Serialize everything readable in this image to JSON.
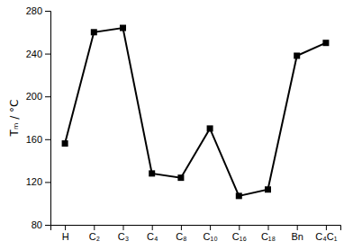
{
  "chart_data": {
    "type": "line",
    "categories": [
      "H",
      "C₂",
      "C₃",
      "C₄",
      "C₈",
      "C₁₀",
      "C₁₆",
      "C₁₈",
      "Bn",
      "C₄C₁"
    ],
    "values": [
      156,
      260,
      264,
      128,
      124,
      170,
      107,
      113,
      238,
      250
    ],
    "ylabel": "Tₘ / °C",
    "ylim": [
      80,
      280
    ],
    "yticks": [
      80,
      120,
      160,
      200,
      240,
      280
    ],
    "color": "#000000",
    "marker": "square",
    "grid": false
  }
}
